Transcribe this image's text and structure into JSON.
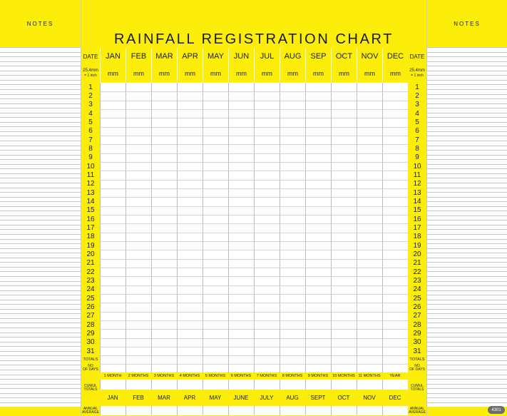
{
  "notes": {
    "left_label": "NOTES",
    "right_label": "NOTES"
  },
  "title": "RAINFALL REGISTRATION CHART",
  "date_column": {
    "header": "DATE",
    "unit_label_line1": "25.4mm",
    "unit_label_line2": "= 1 inch",
    "days": [
      "1",
      "2",
      "3",
      "4",
      "5",
      "6",
      "7",
      "8",
      "9",
      "10",
      "11",
      "12",
      "13",
      "14",
      "15",
      "16",
      "17",
      "18",
      "19",
      "20",
      "21",
      "22",
      "23",
      "24",
      "25",
      "26",
      "27",
      "28",
      "29",
      "30",
      "31"
    ],
    "totals_label": "TOTALS",
    "no_of_days_line1": "NO",
    "no_of_days_line2": "OF DAYS",
    "cumul_line1": "CUMUL",
    "cumul_line2": "TOTALS",
    "annual_line1": "ANNUAL",
    "annual_line2": "AVERAGE"
  },
  "months": [
    {
      "name": "JAN",
      "unit": "mm",
      "cumulative": "1 MONTH",
      "average": "JAN"
    },
    {
      "name": "FEB",
      "unit": "mm",
      "cumulative": "2 MONTHS",
      "average": "FEB"
    },
    {
      "name": "MAR",
      "unit": "mm",
      "cumulative": "3 MONTHS",
      "average": "MAR"
    },
    {
      "name": "APR",
      "unit": "mm",
      "cumulative": "4 MONTHS",
      "average": "APR"
    },
    {
      "name": "MAY",
      "unit": "mm",
      "cumulative": "5 MONTHS",
      "average": "MAY"
    },
    {
      "name": "JUN",
      "unit": "mm",
      "cumulative": "6 MONTHS",
      "average": "JUNE"
    },
    {
      "name": "JUL",
      "unit": "mm",
      "cumulative": "7 MONTHS",
      "average": "JULY"
    },
    {
      "name": "AUG",
      "unit": "mm",
      "cumulative": "8 MONTHS",
      "average": "AUG"
    },
    {
      "name": "SEP",
      "unit": "mm",
      "cumulative": "9 MONTHS",
      "average": "SEPT"
    },
    {
      "name": "OCT",
      "unit": "mm",
      "cumulative": "10 MONTHS",
      "average": "OCT"
    },
    {
      "name": "NOV",
      "unit": "mm",
      "cumulative": "11 MONTHS",
      "average": "NOV"
    },
    {
      "name": "DEC",
      "unit": "mm",
      "cumulative": "YEAR",
      "average": "DEC"
    }
  ],
  "product_code": "4301",
  "colors": {
    "chart_yellow": "#fcee0a",
    "grid_line": "#c7c7c7"
  }
}
